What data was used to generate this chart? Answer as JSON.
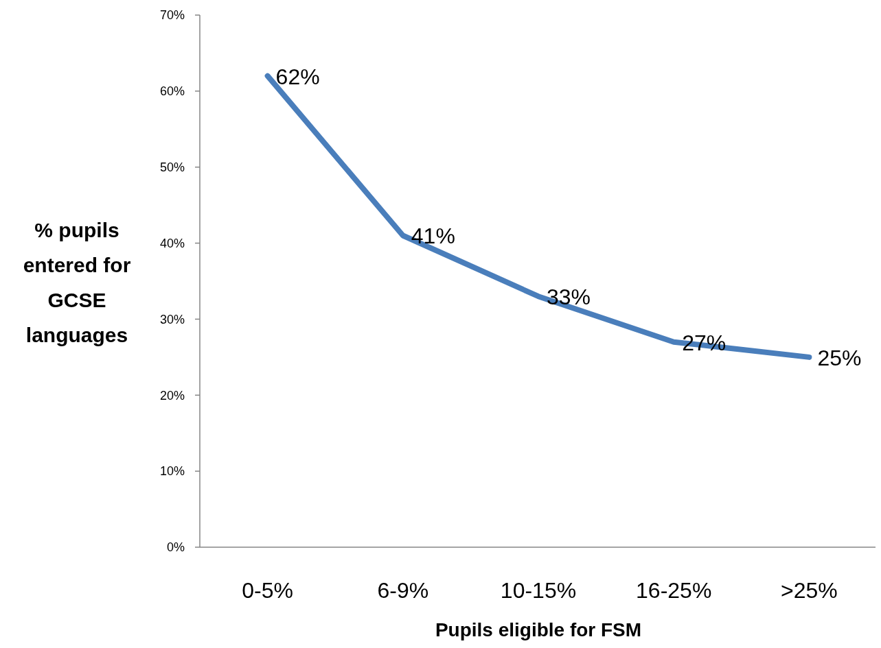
{
  "chart_data": {
    "type": "line",
    "xlabel": "Pupils eligible for FSM",
    "ylabel": "% pupils entered for GCSE languages",
    "categories": [
      "0-5%",
      "6-9%",
      "10-15%",
      "16-25%",
      ">25%"
    ],
    "series": [
      {
        "color": "#4a7ebb",
        "values": [
          62,
          41,
          33,
          27,
          25
        ],
        "value_labels": [
          "62%",
          "41%",
          "33%",
          "27%",
          "25%"
        ]
      }
    ],
    "ylim": [
      0,
      70
    ],
    "yticks": [
      {
        "value": 0,
        "label": "0%"
      },
      {
        "value": 10,
        "label": "10%"
      },
      {
        "value": 20,
        "label": "20%"
      },
      {
        "value": 30,
        "label": "30%"
      },
      {
        "value": 40,
        "label": "40%"
      },
      {
        "value": 50,
        "label": "50%"
      },
      {
        "value": 60,
        "label": "60%"
      },
      {
        "value": 70,
        "label": "70%"
      }
    ],
    "grid": false,
    "marker": "none",
    "line_style": "solid"
  }
}
